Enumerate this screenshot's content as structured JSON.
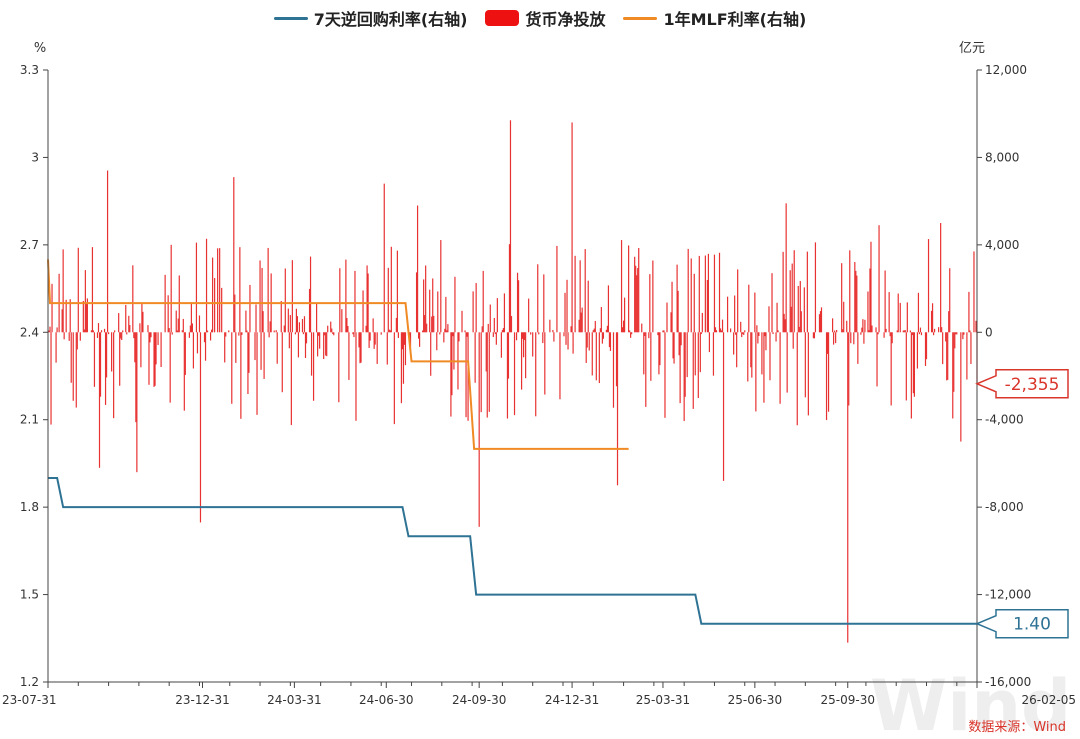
{
  "legend": [
    {
      "label": "7天逆回购利率(右轴)",
      "color": "#2e7294",
      "shape": "line"
    },
    {
      "label": "货币净投放",
      "color": "#ee1111",
      "shape": "rect"
    },
    {
      "label": "1年MLF利率(右轴)",
      "color": "#f08a24",
      "shape": "line"
    }
  ],
  "source_note": "数据来源：Wind",
  "watermark": "Wind",
  "chart_data": {
    "type": "bar+line",
    "left_axis": {
      "unit": "%",
      "min": 1.2,
      "max": 3.3,
      "ticks": [
        1.2,
        1.5,
        1.8,
        2.1,
        2.4,
        2.7,
        3,
        3.3
      ]
    },
    "right_axis": {
      "unit": "亿元",
      "min": -16000,
      "max": 12000,
      "ticks": [
        -16000,
        -12000,
        -8000,
        -4000,
        0,
        4000,
        8000,
        12000
      ],
      "tick_labels": [
        "-16,000",
        "-12,000",
        "-8,000",
        "-4,000",
        "0",
        "4,000",
        "8,000",
        "12,000"
      ]
    },
    "x_axis": {
      "start": "2023-07-31",
      "end": "2026-02-05",
      "tick_labels": [
        "23-07-31",
        "23-12-31",
        "24-03-31",
        "24-06-30",
        "24-09-30",
        "24-12-31",
        "25-03-31",
        "25-06-30",
        "25-09-30",
        "26-02-05"
      ],
      "tick_dates": [
        "2023-07-31",
        "2023-12-31",
        "2024-03-31",
        "2024-06-30",
        "2024-09-30",
        "2024-12-31",
        "2025-03-31",
        "2025-06-30",
        "2025-09-30",
        "2026-02-05"
      ]
    },
    "series": [
      {
        "name": "7天逆回购利率(右轴)",
        "axis": "left",
        "kind": "step",
        "color": "#2e7294",
        "points": [
          [
            "2023-07-31",
            1.9
          ],
          [
            "2023-08-15",
            1.8
          ],
          [
            "2024-07-22",
            1.7
          ],
          [
            "2024-09-27",
            1.5
          ],
          [
            "2025-05-08",
            1.4
          ],
          [
            "2026-02-05",
            1.4
          ]
        ],
        "last_label": "1.40"
      },
      {
        "name": "1年MLF利率(右轴)",
        "axis": "left",
        "kind": "step",
        "color": "#f08a24",
        "points": [
          [
            "2023-07-31",
            2.65
          ],
          [
            "2023-08-02",
            2.5
          ],
          [
            "2024-07-25",
            2.3
          ],
          [
            "2024-09-25",
            2.0
          ],
          [
            "2025-02-25",
            2.0
          ]
        ]
      },
      {
        "name": "货币净投放",
        "axis": "right",
        "kind": "bar",
        "color": "#e83232",
        "seed_note": "daily net injection, dense bars (values approximate)",
        "spikes": [
          {
            "date": "2023-09-20",
            "value": -6200
          },
          {
            "date": "2023-09-28",
            "value": 7400
          },
          {
            "date": "2023-10-27",
            "value": -6400
          },
          {
            "date": "2023-11-30",
            "value": 4000
          },
          {
            "date": "2023-12-29",
            "value": -8700
          },
          {
            "date": "2024-01-31",
            "value": 7100
          },
          {
            "date": "2024-03-29",
            "value": 3300
          },
          {
            "date": "2024-06-28",
            "value": 6800
          },
          {
            "date": "2024-07-31",
            "value": 5800
          },
          {
            "date": "2024-09-30",
            "value": -8900
          },
          {
            "date": "2024-10-31",
            "value": 9700
          },
          {
            "date": "2024-12-31",
            "value": 9600
          },
          {
            "date": "2025-02-14",
            "value": -7000
          },
          {
            "date": "2025-05-30",
            "value": -6800
          },
          {
            "date": "2025-07-31",
            "value": 5900
          },
          {
            "date": "2025-09-30",
            "value": -14200
          },
          {
            "date": "2025-10-31",
            "value": 4900
          },
          {
            "date": "2025-12-31",
            "value": 5000
          },
          {
            "date": "2026-01-20",
            "value": -5000
          },
          {
            "date": "2026-02-05",
            "value": -2355
          }
        ],
        "last_label": "-2,355"
      }
    ]
  }
}
